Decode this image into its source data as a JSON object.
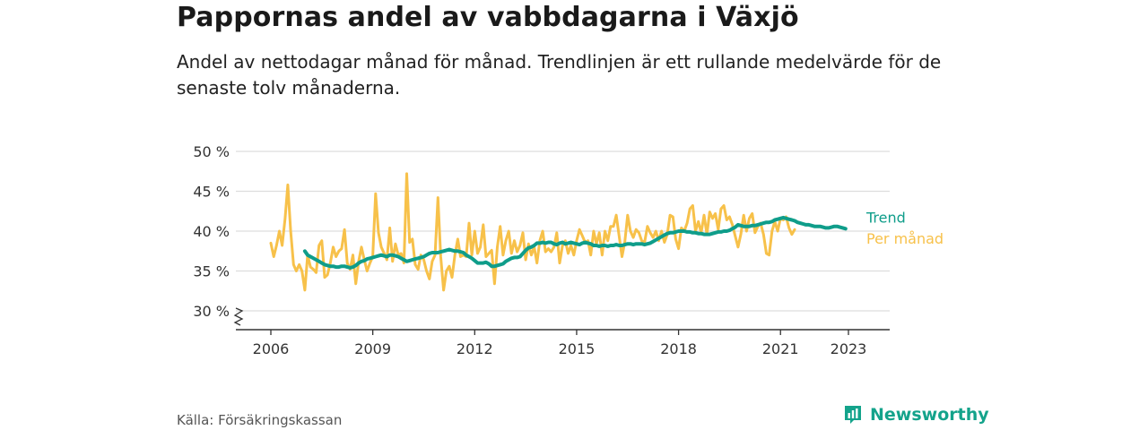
{
  "title": "Pappornas andel av vabbdagarna i Växjö",
  "subtitle": "Andel av nettodagar månad för månad. Trendlinjen är ett rullande medelvärde för de senaste tolv månaderna.",
  "source": "Källa: Försäkringskassan",
  "brand": "Newsworthy",
  "colors": {
    "per_month": "#f7c14a",
    "trend": "#0f9d8a",
    "grid": "#dddddd",
    "axis": "#333333",
    "brand": "#14a38b"
  },
  "chart_data": {
    "type": "line",
    "yticks": [
      "30 %",
      "35 %",
      "40 %",
      "45 %",
      "50 %"
    ],
    "ytick_values": [
      30,
      35,
      40,
      45,
      50
    ],
    "xticks": [
      "2006",
      "2009",
      "2012",
      "2015",
      "2018",
      "2021",
      "2023"
    ],
    "xtick_values": [
      2006,
      2009,
      2012,
      2015,
      2018,
      2021,
      2023
    ],
    "ylim": [
      28,
      50
    ],
    "xlim": [
      2005.6,
      2024.4
    ],
    "axis_break": true,
    "grid": true,
    "legend": "end-of-line labels",
    "series": [
      {
        "name": "Per månad",
        "start": "2006-01",
        "values": [
          38.5,
          36.8,
          38.2,
          40.0,
          38.2,
          41.5,
          45.8,
          40.0,
          35.8,
          35.0,
          35.8,
          35.0,
          32.6,
          37.0,
          35.5,
          35.2,
          34.8,
          38.2,
          38.8,
          34.2,
          34.5,
          36.0,
          38.0,
          36.8,
          37.5,
          37.8,
          40.2,
          36.0,
          35.2,
          37.0,
          33.4,
          36.2,
          38.0,
          36.4,
          35.0,
          36.0,
          36.8,
          44.7,
          39.8,
          38.0,
          37.2,
          36.4,
          40.4,
          36.2,
          38.4,
          37.0,
          37.2,
          36.0,
          47.2,
          38.6,
          39.0,
          35.8,
          35.2,
          37.0,
          36.4,
          35.0,
          34.0,
          36.2,
          37.0,
          44.2,
          36.8,
          32.6,
          35.0,
          35.6,
          34.2,
          37.0,
          39.0,
          36.8,
          37.0,
          36.8,
          41.0,
          37.0,
          40.0,
          37.2,
          38.0,
          40.8,
          36.8,
          37.2,
          37.6,
          33.4,
          38.0,
          40.6,
          37.0,
          38.8,
          40.0,
          37.2,
          38.8,
          37.4,
          38.2,
          39.8,
          36.4,
          38.4,
          37.0,
          38.0,
          36.0,
          38.8,
          40.0,
          37.4,
          37.8,
          37.4,
          38.0,
          39.8,
          36.0,
          38.2,
          38.8,
          37.2,
          38.2,
          37.0,
          38.8,
          40.2,
          39.4,
          38.6,
          38.8,
          37.0,
          40.0,
          38.4,
          39.8,
          37.0,
          40.0,
          38.8,
          40.6,
          40.6,
          42.0,
          39.4,
          36.8,
          38.6,
          42.0,
          40.0,
          39.2,
          40.2,
          39.8,
          38.8,
          38.6,
          40.6,
          39.8,
          39.2,
          40.0,
          38.8,
          40.0,
          38.6,
          39.6,
          42.0,
          41.8,
          39.0,
          37.8,
          40.4,
          40.0,
          41.0,
          42.8,
          43.2,
          40.0,
          41.2,
          39.8,
          42.0,
          39.6,
          42.4,
          41.6,
          42.2,
          40.2,
          42.8,
          43.2,
          41.4,
          41.8,
          40.8,
          39.4,
          38.0,
          39.6,
          42.0,
          40.0,
          41.6,
          42.2,
          39.8,
          40.6,
          41.0,
          39.6,
          37.2,
          37.0,
          40.0,
          41.2,
          40.0,
          41.6,
          41.4,
          41.8,
          40.4,
          39.6,
          40.2
        ]
      },
      {
        "name": "Trend",
        "start": "2007-01",
        "values": [
          37.5,
          37.0,
          36.8,
          36.6,
          36.4,
          36.2,
          36.0,
          35.8,
          35.7,
          35.6,
          35.6,
          35.5,
          35.5,
          35.6,
          35.6,
          35.5,
          35.4,
          35.5,
          35.7,
          36.0,
          36.2,
          36.3,
          36.5,
          36.6,
          36.7,
          36.8,
          36.9,
          37.0,
          36.9,
          36.8,
          37.0,
          37.0,
          36.9,
          36.8,
          36.6,
          36.4,
          36.2,
          36.3,
          36.4,
          36.5,
          36.6,
          36.7,
          36.8,
          37.0,
          37.2,
          37.3,
          37.3,
          37.3,
          37.4,
          37.5,
          37.6,
          37.7,
          37.6,
          37.5,
          37.5,
          37.4,
          37.3,
          37.0,
          36.8,
          36.6,
          36.3,
          36.0,
          36.0,
          36.0,
          36.1,
          35.9,
          35.6,
          35.6,
          35.7,
          35.8,
          35.9,
          36.2,
          36.4,
          36.6,
          36.7,
          36.7,
          36.8,
          37.2,
          37.6,
          37.9,
          38.0,
          38.2,
          38.5,
          38.5,
          38.6,
          38.5,
          38.6,
          38.6,
          38.4,
          38.3,
          38.5,
          38.6,
          38.4,
          38.5,
          38.6,
          38.5,
          38.4,
          38.3,
          38.5,
          38.6,
          38.5,
          38.4,
          38.2,
          38.2,
          38.1,
          38.2,
          38.2,
          38.1,
          38.2,
          38.2,
          38.3,
          38.2,
          38.2,
          38.3,
          38.4,
          38.4,
          38.3,
          38.4,
          38.4,
          38.4,
          38.3,
          38.4,
          38.5,
          38.7,
          38.9,
          39.1,
          39.3,
          39.5,
          39.7,
          39.8,
          39.8,
          39.9,
          40.0,
          40.0,
          40.0,
          39.9,
          39.9,
          39.8,
          39.8,
          39.7,
          39.7,
          39.6,
          39.6,
          39.6,
          39.7,
          39.8,
          39.9,
          39.9,
          40.0,
          40.0,
          40.1,
          40.3,
          40.5,
          40.8,
          40.7,
          40.6,
          40.6,
          40.6,
          40.7,
          40.7,
          40.8,
          40.9,
          41.0,
          41.1,
          41.1,
          41.2,
          41.4,
          41.5,
          41.6,
          41.7,
          41.6,
          41.5,
          41.4,
          41.3,
          41.1,
          41.0,
          40.9,
          40.8,
          40.8,
          40.7,
          40.6,
          40.6,
          40.6,
          40.5,
          40.4,
          40.4,
          40.5,
          40.6,
          40.6,
          40.5,
          40.4,
          40.3
        ]
      }
    ]
  }
}
